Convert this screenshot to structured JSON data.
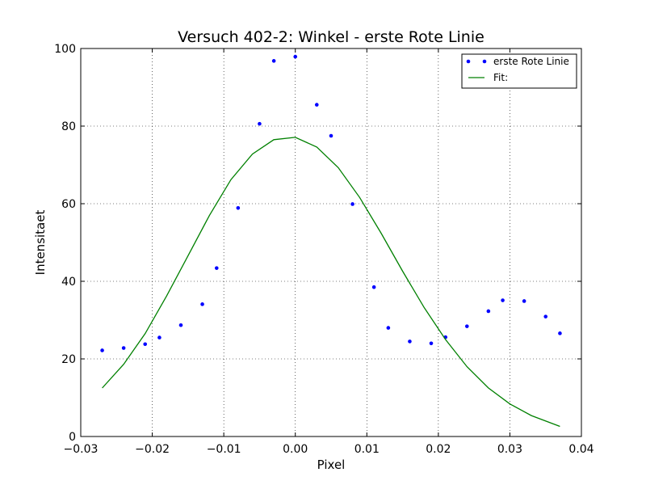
{
  "chart_data": {
    "type": "scatter",
    "title": "Versuch 402-2: Winkel - erste Rote Linie",
    "xlabel": "Pixel",
    "ylabel": "Intensitaet",
    "xlim": [
      -0.03,
      0.04
    ],
    "ylim": [
      0,
      100
    ],
    "xticks": [
      -0.03,
      -0.02,
      -0.01,
      0.0,
      0.01,
      0.02,
      0.03,
      0.04
    ],
    "xtick_labels": [
      "−0.03",
      "−0.02",
      "−0.01",
      "0.00",
      "0.01",
      "0.02",
      "0.03",
      "0.04"
    ],
    "yticks": [
      0,
      20,
      40,
      60,
      80,
      100
    ],
    "ytick_labels": [
      "0",
      "20",
      "40",
      "60",
      "80",
      "100"
    ],
    "grid": true,
    "legend_position": "top-right",
    "series": [
      {
        "name": "erste Rote Linie",
        "kind": "scatter",
        "color": "#0000ff",
        "x": [
          -0.027,
          -0.024,
          -0.021,
          -0.019,
          -0.016,
          -0.013,
          -0.011,
          -0.008,
          -0.005,
          -0.003,
          0.0,
          0.003,
          0.005,
          0.008,
          0.011,
          0.013,
          0.016,
          0.019,
          0.021,
          0.024,
          0.027,
          0.029,
          0.032,
          0.035,
          0.037
        ],
        "y": [
          22.2,
          22.8,
          23.8,
          25.5,
          28.7,
          34.1,
          43.4,
          58.9,
          80.6,
          96.8,
          97.9,
          85.5,
          77.5,
          59.9,
          38.5,
          28.0,
          24.5,
          24.0,
          25.6,
          28.4,
          32.3,
          35.1,
          34.9,
          30.9,
          26.6
        ]
      },
      {
        "name": "Fit:",
        "kind": "line",
        "color": "#008000",
        "x": [
          -0.027,
          -0.024,
          -0.021,
          -0.018,
          -0.015,
          -0.012,
          -0.009,
          -0.006,
          -0.003,
          0.0,
          0.003,
          0.006,
          0.009,
          0.012,
          0.015,
          0.018,
          0.021,
          0.024,
          0.027,
          0.03,
          0.033,
          0.037
        ],
        "y": [
          12.5,
          18.6,
          26.5,
          36.2,
          46.6,
          57.0,
          66.2,
          72.8,
          76.5,
          77.1,
          74.6,
          69.3,
          61.6,
          52.4,
          42.6,
          33.3,
          25.0,
          18.0,
          12.5,
          8.4,
          5.4,
          2.6
        ]
      }
    ]
  }
}
